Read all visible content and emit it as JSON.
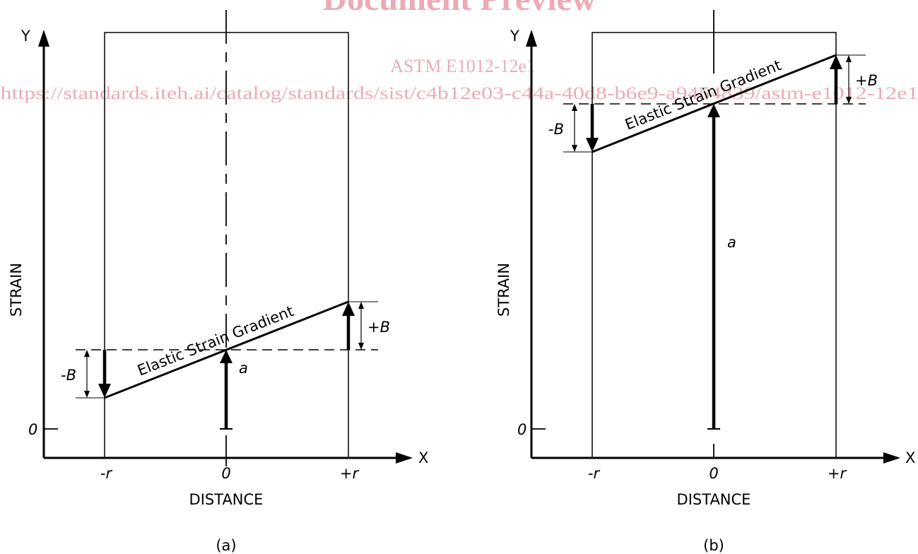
{
  "watermark": {
    "title": "Document Preview",
    "standard": "ASTM E1012-12e1",
    "url": "https://standards.iteh.ai/catalog/standards/sist/c4b12e03-c44a-40d8-b6e9-a9454839/astm-e1012-12e1",
    "color": "#c8102e"
  },
  "figures": [
    {
      "caption": "(a)",
      "y_axis_letter": "Y",
      "x_axis_letter": "X",
      "y_axis_label": "STRAIN",
      "x_axis_label": "DISTANCE",
      "zero_label": "0",
      "neg_r_label": "-r",
      "center_label": "0",
      "pos_r_label": "+r",
      "gradient_label": "Elastic Strain Gradient",
      "a_label": "a",
      "neg_b_label": "-B",
      "pos_b_label": "+B"
    },
    {
      "caption": "(b)",
      "y_axis_letter": "Y",
      "x_axis_letter": "X",
      "y_axis_label": "STRAIN",
      "x_axis_label": "DISTANCE",
      "zero_label": "0",
      "neg_r_label": "-r",
      "center_label": "0",
      "pos_r_label": "+r",
      "gradient_label": "Elastic Strain Gradient",
      "a_label": "a",
      "neg_b_label": "-B",
      "pos_b_label": "+B"
    }
  ]
}
